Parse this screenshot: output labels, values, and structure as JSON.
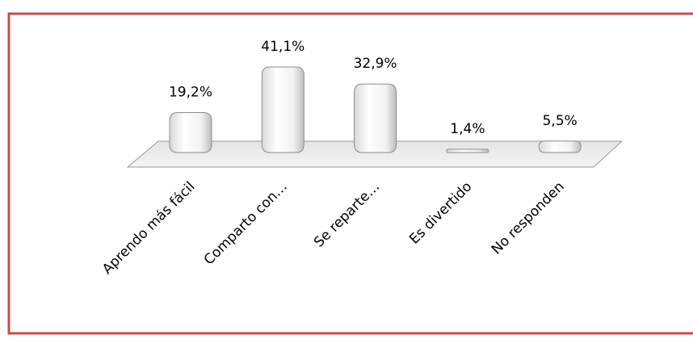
{
  "chart_data": {
    "type": "bar",
    "categories": [
      "Aprendo más fácil",
      "Comparto con…",
      "Se reparte…",
      "Es divertido",
      "No responden"
    ],
    "values": [
      19.2,
      41.1,
      32.9,
      1.4,
      5.5
    ],
    "value_labels": [
      "19,2%",
      "41,1%",
      "32,9%",
      "1,4%",
      "5,5%"
    ],
    "color": "#ffffff"
  }
}
